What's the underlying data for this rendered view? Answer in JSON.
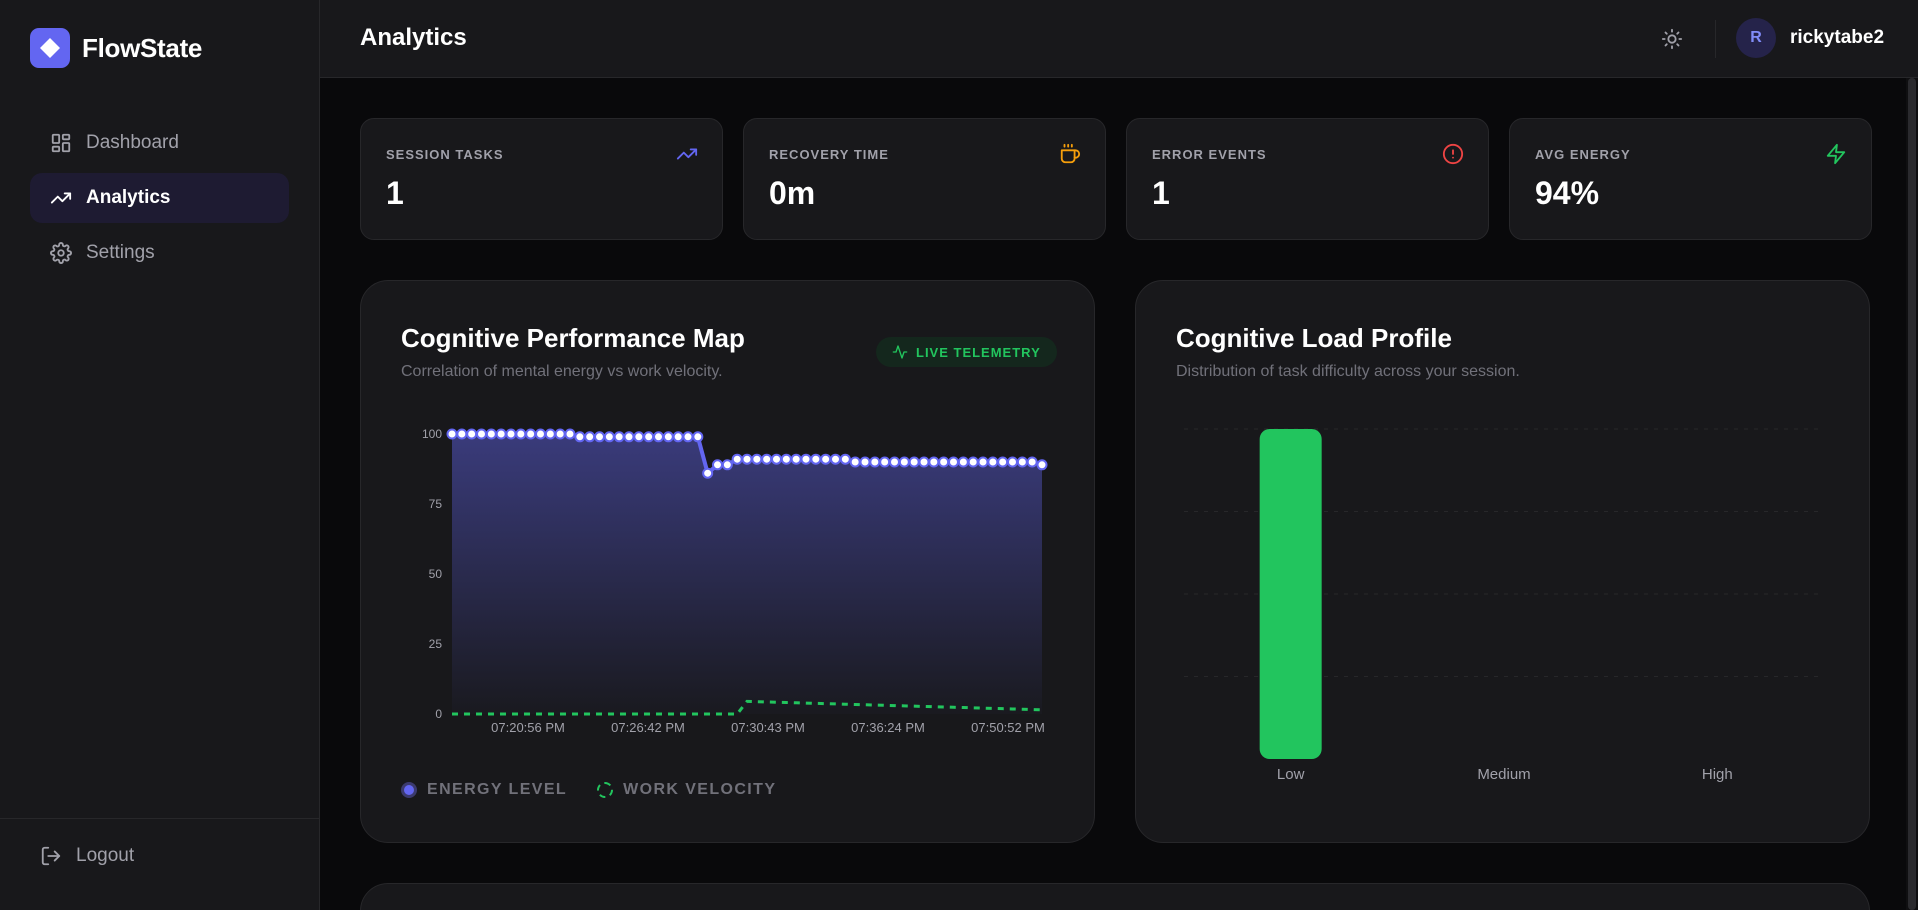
{
  "app": {
    "name": "FlowState"
  },
  "sidebar": {
    "items": [
      {
        "label": "Dashboard",
        "icon": "dashboard-grid-icon",
        "active": false
      },
      {
        "label": "Analytics",
        "icon": "trending-up-icon",
        "active": true
      },
      {
        "label": "Settings",
        "icon": "gear-icon",
        "active": false
      }
    ],
    "logout_label": "Logout"
  },
  "header": {
    "title": "Analytics",
    "theme_icon": "sun-icon"
  },
  "user": {
    "initial": "R",
    "name": "rickytabe2"
  },
  "stats": [
    {
      "label": "SESSION TASKS",
      "value": "1",
      "icon": "trending-up-icon",
      "color": "#6366f1"
    },
    {
      "label": "RECOVERY TIME",
      "value": "0m",
      "icon": "coffee-cup-icon",
      "color": "#f59e0b"
    },
    {
      "label": "ERROR EVENTS",
      "value": "1",
      "icon": "alert-circle-icon",
      "color": "#ef4444"
    },
    {
      "label": "AVG ENERGY",
      "value": "94%",
      "icon": "lightning-icon",
      "color": "#22c55e"
    }
  ],
  "performance": {
    "title": "Cognitive Performance Map",
    "subtitle": "Correlation of mental energy vs work velocity.",
    "badge": "LIVE TELEMETRY",
    "legend": {
      "energy": "ENERGY LEVEL",
      "velocity": "WORK VELOCITY"
    }
  },
  "load": {
    "title": "Cognitive Load Profile",
    "subtitle": "Distribution of task difficulty across your session."
  },
  "chart_data": [
    {
      "type": "line",
      "title": "Cognitive Performance Map",
      "ylim": [
        0,
        100
      ],
      "yticks": [
        0,
        25,
        50,
        75,
        100
      ],
      "x_tick_labels": [
        "07:20:56 PM",
        "07:26:42 PM",
        "07:30:43 PM",
        "07:36:24 PM",
        "07:50:52 PM"
      ],
      "series": [
        {
          "name": "ENERGY LEVEL",
          "color": "#6366f1",
          "values": [
            100,
            100,
            100,
            100,
            100,
            100,
            100,
            100,
            100,
            100,
            100,
            100,
            100,
            99,
            99,
            99,
            99,
            99,
            99,
            99,
            99,
            99,
            99,
            99,
            99,
            99,
            86,
            89,
            89,
            91,
            91,
            91,
            91,
            91,
            91,
            91,
            91,
            91,
            91,
            91,
            91,
            90,
            90,
            90,
            90,
            90,
            90,
            90,
            90,
            90,
            90,
            90,
            90,
            90,
            90,
            90,
            90,
            90,
            90,
            90,
            89
          ]
        },
        {
          "name": "WORK VELOCITY",
          "color": "#22c55e",
          "values": [
            0,
            0,
            0,
            0,
            0,
            0,
            0,
            0,
            0,
            0,
            0,
            0,
            0,
            0,
            0,
            0,
            0,
            0,
            0,
            0,
            0,
            0,
            0,
            0,
            0,
            0,
            0,
            0,
            0,
            0,
            4.5,
            4.4,
            4.3,
            4.2,
            4.1,
            4.0,
            3.9,
            3.8,
            3.7,
            3.6,
            3.5,
            3.4,
            3.3,
            3.2,
            3.1,
            3.0,
            2.9,
            2.8,
            2.7,
            2.6,
            2.5,
            2.4,
            2.3,
            2.2,
            2.1,
            2.0,
            1.9,
            1.8,
            1.7,
            1.6,
            1.5
          ]
        }
      ]
    },
    {
      "type": "bar",
      "title": "Cognitive Load Profile",
      "categories": [
        "Low",
        "Medium",
        "High"
      ],
      "values": [
        1,
        0,
        0
      ],
      "ylim": [
        0,
        1
      ],
      "color": "#22c55e"
    }
  ]
}
